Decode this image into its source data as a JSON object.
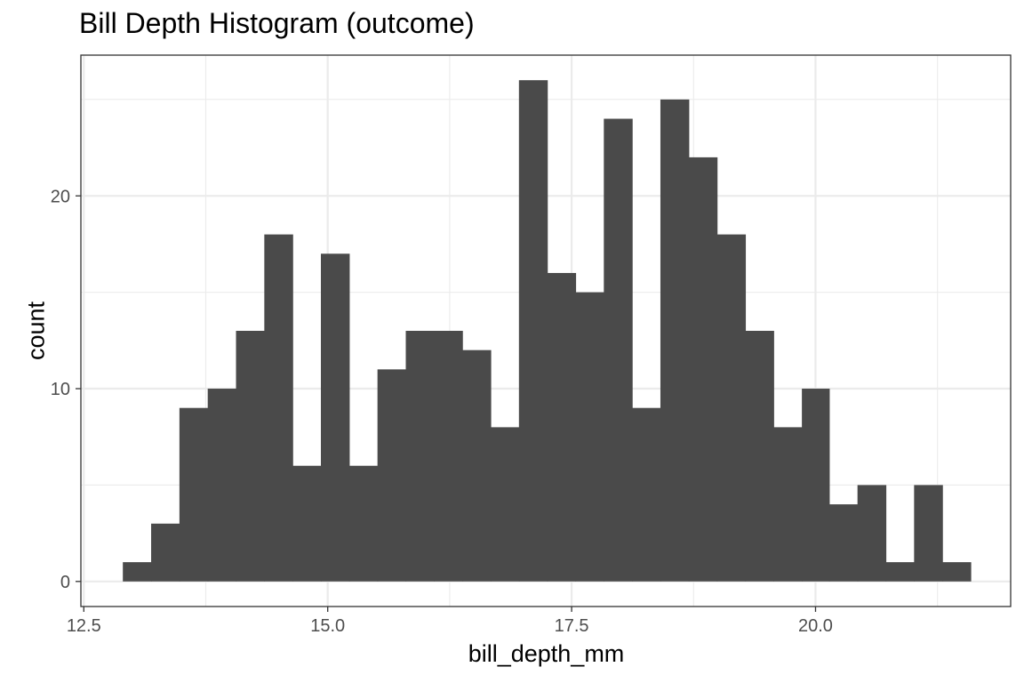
{
  "chart_data": {
    "type": "bar",
    "title": "Bill Depth Histogram (outcome)",
    "xlabel": "bill_depth_mm",
    "ylabel": "count",
    "bin_width": 0.2897,
    "bins": [
      {
        "x0": 12.9,
        "x1": 13.19,
        "count": 1
      },
      {
        "x0": 13.19,
        "x1": 13.48,
        "count": 3
      },
      {
        "x0": 13.48,
        "x1": 13.77,
        "count": 9
      },
      {
        "x0": 13.77,
        "x1": 14.06,
        "count": 10
      },
      {
        "x0": 14.06,
        "x1": 14.35,
        "count": 13
      },
      {
        "x0": 14.35,
        "x1": 14.64,
        "count": 18
      },
      {
        "x0": 14.64,
        "x1": 14.93,
        "count": 6
      },
      {
        "x0": 14.93,
        "x1": 15.22,
        "count": 17
      },
      {
        "x0": 15.22,
        "x1": 15.51,
        "count": 6
      },
      {
        "x0": 15.51,
        "x1": 15.8,
        "count": 11
      },
      {
        "x0": 15.8,
        "x1": 16.09,
        "count": 13
      },
      {
        "x0": 16.09,
        "x1": 16.38,
        "count": 13
      },
      {
        "x0": 16.38,
        "x1": 16.67,
        "count": 12
      },
      {
        "x0": 16.67,
        "x1": 16.96,
        "count": 8
      },
      {
        "x0": 16.96,
        "x1": 17.25,
        "count": 26
      },
      {
        "x0": 17.25,
        "x1": 17.54,
        "count": 16
      },
      {
        "x0": 17.54,
        "x1": 17.83,
        "count": 15
      },
      {
        "x0": 17.83,
        "x1": 18.12,
        "count": 24
      },
      {
        "x0": 18.12,
        "x1": 18.41,
        "count": 9
      },
      {
        "x0": 18.41,
        "x1": 18.7,
        "count": 25
      },
      {
        "x0": 18.7,
        "x1": 18.99,
        "count": 22
      },
      {
        "x0": 18.99,
        "x1": 19.28,
        "count": 18
      },
      {
        "x0": 19.28,
        "x1": 19.57,
        "count": 13
      },
      {
        "x0": 19.57,
        "x1": 19.86,
        "count": 8
      },
      {
        "x0": 19.86,
        "x1": 20.14,
        "count": 10
      },
      {
        "x0": 20.14,
        "x1": 20.43,
        "count": 4
      },
      {
        "x0": 20.43,
        "x1": 20.72,
        "count": 5
      },
      {
        "x0": 20.72,
        "x1": 21.01,
        "count": 1
      },
      {
        "x0": 21.01,
        "x1": 21.3,
        "count": 5
      },
      {
        "x0": 21.3,
        "x1": 21.59,
        "count": 1
      }
    ],
    "xlim": [
      12.47,
      22.0
    ],
    "ylim": [
      -1.3,
      27.3
    ],
    "x_ticks": [
      12.5,
      15.0,
      17.5,
      20.0
    ],
    "x_tick_labels": [
      "12.5",
      "15.0",
      "17.5",
      "20.0"
    ],
    "y_ticks": [
      0,
      10,
      20
    ],
    "y_tick_labels": [
      "0",
      "10",
      "20"
    ],
    "grid": true,
    "legend": "none",
    "bar_color": "#4a4a4a",
    "grid_color": "#ebebeb",
    "panel_border_color": "#333333"
  }
}
